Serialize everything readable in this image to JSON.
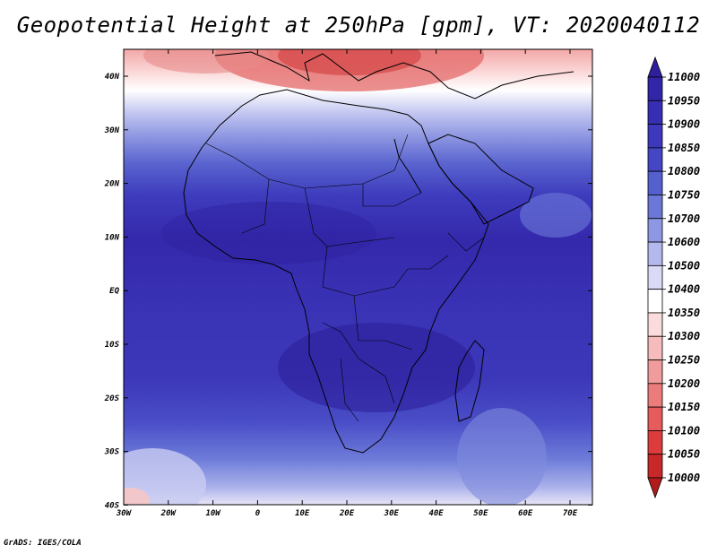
{
  "title": "Geopotential Height at 250hPa [gpm], VT: 2020040112",
  "credit": "GrADS: IGES/COLA",
  "map": {
    "lat_labels": [
      "40N",
      "30N",
      "20N",
      "10N",
      "EQ",
      "10S",
      "20S",
      "30S",
      "40S"
    ],
    "lon_labels": [
      "30W",
      "20W",
      "10W",
      "0",
      "10E",
      "20E",
      "30E",
      "40E",
      "50E",
      "60E",
      "70E"
    ]
  },
  "colorbar": {
    "levels": [
      "11000",
      "10950",
      "10900",
      "10850",
      "10800",
      "10750",
      "10700",
      "10600",
      "10500",
      "10400",
      "10350",
      "10300",
      "10250",
      "10200",
      "10150",
      "10100",
      "10050",
      "10000"
    ],
    "colors": [
      "#2e1f9c",
      "#3226a8",
      "#372fb3",
      "#3d38bc",
      "#4446c4",
      "#5560cf",
      "#6b78d8",
      "#8e98e2",
      "#b4b9ed",
      "#d9dbf6",
      "#ffffff",
      "#fbdcdc",
      "#f6bcbc",
      "#f19c9c",
      "#ec7c7c",
      "#e65b5b",
      "#dc3c3c",
      "#c82828",
      "#b01c1c"
    ]
  }
}
